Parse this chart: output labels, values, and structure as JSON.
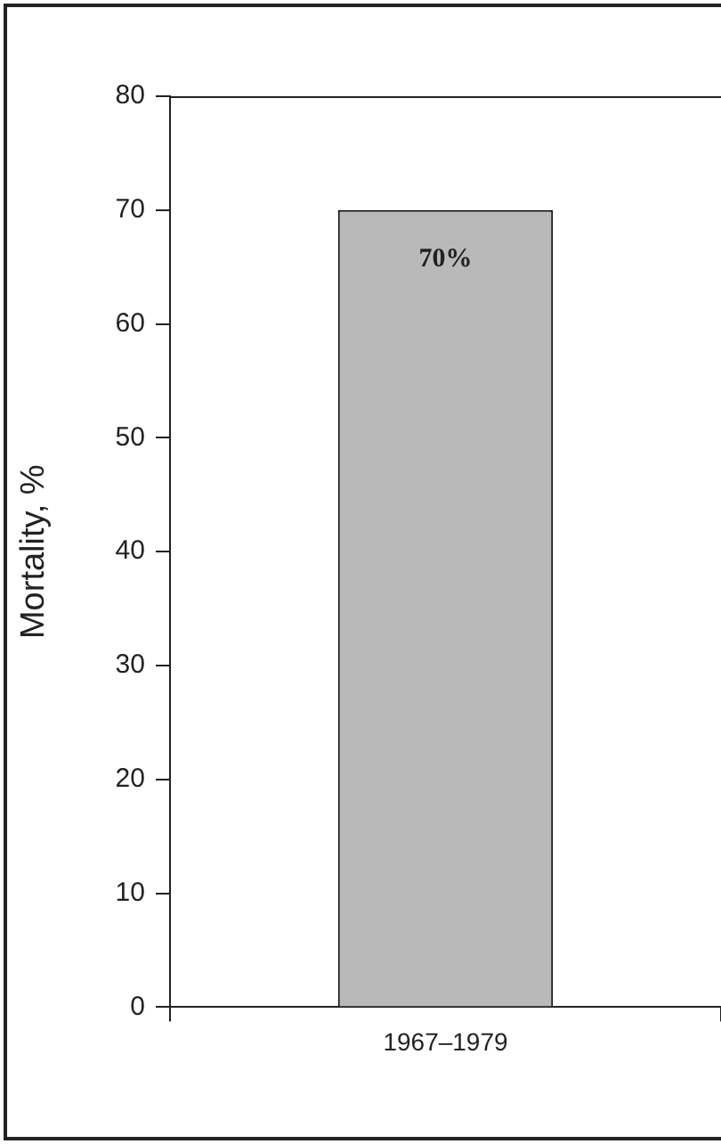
{
  "chart_data": {
    "type": "bar",
    "ylabel": "Mortality, %",
    "categories": [
      "1967–1979"
    ],
    "values": [
      70
    ],
    "value_labels": [
      "70%"
    ],
    "color": "#b9b9b9",
    "ylim": [
      0,
      80
    ],
    "yticks": [
      0,
      10,
      20,
      30,
      40,
      50,
      60,
      70,
      80
    ],
    "grid": false,
    "legend": false
  }
}
